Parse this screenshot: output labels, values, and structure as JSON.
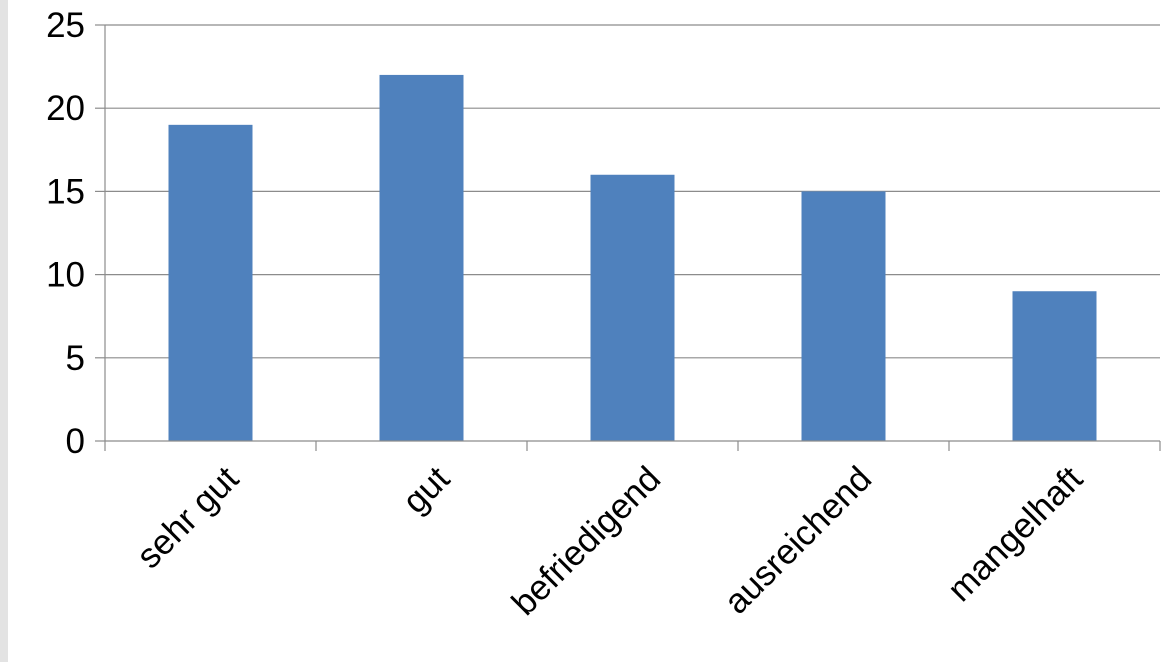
{
  "chart_data": {
    "type": "bar",
    "title": "",
    "xlabel": "",
    "ylabel": "",
    "categories": [
      "sehr gut",
      "gut",
      "befriedigend",
      "ausreichend",
      "mangelhaft"
    ],
    "values": [
      19,
      22,
      16,
      15,
      9
    ],
    "ylim": [
      0,
      25
    ],
    "yticks": [
      0,
      5,
      10,
      15,
      20,
      25
    ],
    "grid": "horizontal",
    "legend": "none",
    "x_label_rotation_deg": -45,
    "colors": {
      "bar": "#4f81bd",
      "grid": "#8c8c8c",
      "text": "#000000",
      "background": "#ffffff"
    }
  }
}
